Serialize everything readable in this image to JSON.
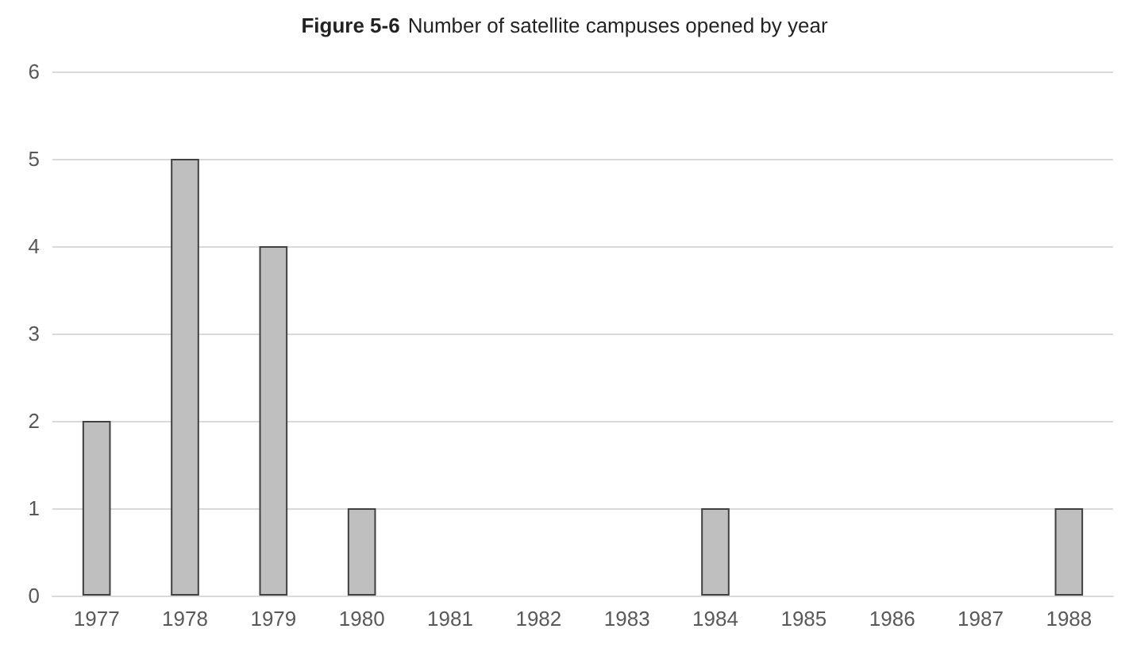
{
  "chart_data": {
    "type": "bar",
    "title": "Figure 5-6 Number of satellite campuses opened by year",
    "categories": [
      "1977",
      "1978",
      "1979",
      "1980",
      "1981",
      "1982",
      "1983",
      "1984",
      "1985",
      "1986",
      "1987",
      "1988"
    ],
    "values": [
      2,
      5,
      4,
      1,
      0,
      0,
      0,
      1,
      0,
      0,
      0,
      1
    ],
    "color": "#bfbfbf",
    "ylim": [
      0,
      6
    ],
    "yticks": [
      0,
      1,
      2,
      3,
      4,
      5,
      6
    ],
    "grid": "y"
  }
}
